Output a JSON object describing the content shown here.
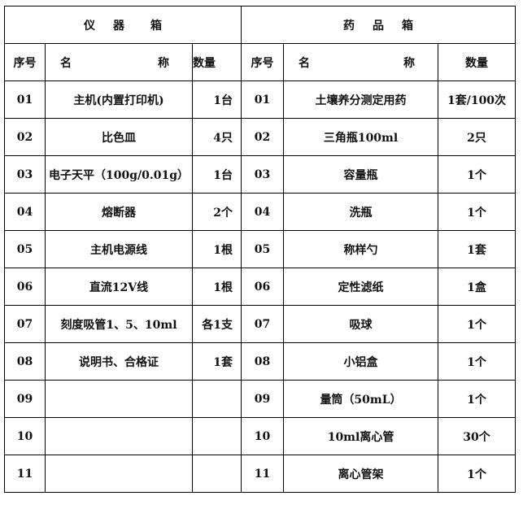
{
  "instrument_box": {
    "title": [
      "仪",
      "器",
      "箱"
    ],
    "headers": {
      "index": "序号",
      "name_left": "名",
      "name_right": "称",
      "qty": "数量"
    },
    "rows": [
      {
        "index": "01",
        "name": "主机(内置打印机)",
        "qty": "1台"
      },
      {
        "index": "02",
        "name": "比色皿",
        "qty": "4只"
      },
      {
        "index": "03",
        "name": "电子天平（100g/0.01g）",
        "qty": "1台"
      },
      {
        "index": "04",
        "name": "熔断器",
        "qty": "2个"
      },
      {
        "index": "05",
        "name": "主机电源线",
        "qty": "1根"
      },
      {
        "index": "06",
        "name": "直流12V线",
        "qty": "1根"
      },
      {
        "index": "07",
        "name": "刻度吸管1、5、10ml",
        "qty": "各1支"
      },
      {
        "index": "08",
        "name": "说明书、合格证",
        "qty": "1套"
      },
      {
        "index": "09",
        "name": "",
        "qty": ""
      },
      {
        "index": "10",
        "name": "",
        "qty": ""
      },
      {
        "index": "11",
        "name": "",
        "qty": ""
      }
    ]
  },
  "reagent_box": {
    "title": [
      "药",
      "品",
      "箱"
    ],
    "headers": {
      "index": "序号",
      "name_left": "名",
      "name_right": "称",
      "qty": "数量"
    },
    "rows": [
      {
        "index": "01",
        "name": "土壤养分测定用药",
        "qty": "1套/100次"
      },
      {
        "index": "02",
        "name": "三角瓶100ml",
        "qty": "2只"
      },
      {
        "index": "03",
        "name": "容量瓶",
        "qty": "1个"
      },
      {
        "index": "04",
        "name": "洗瓶",
        "qty": "1个"
      },
      {
        "index": "05",
        "name": "称样勺",
        "qty": "1套"
      },
      {
        "index": "06",
        "name": "定性滤纸",
        "qty": "1盒"
      },
      {
        "index": "07",
        "name": "吸球",
        "qty": "1个"
      },
      {
        "index": "08",
        "name": "小铝盒",
        "qty": "1个"
      },
      {
        "index": "09",
        "name": "量筒（50mL）",
        "qty": "1个"
      },
      {
        "index": "10",
        "name": "10ml离心管",
        "qty": "30个"
      },
      {
        "index": "11",
        "name": "离心管架",
        "qty": "1个"
      }
    ]
  }
}
